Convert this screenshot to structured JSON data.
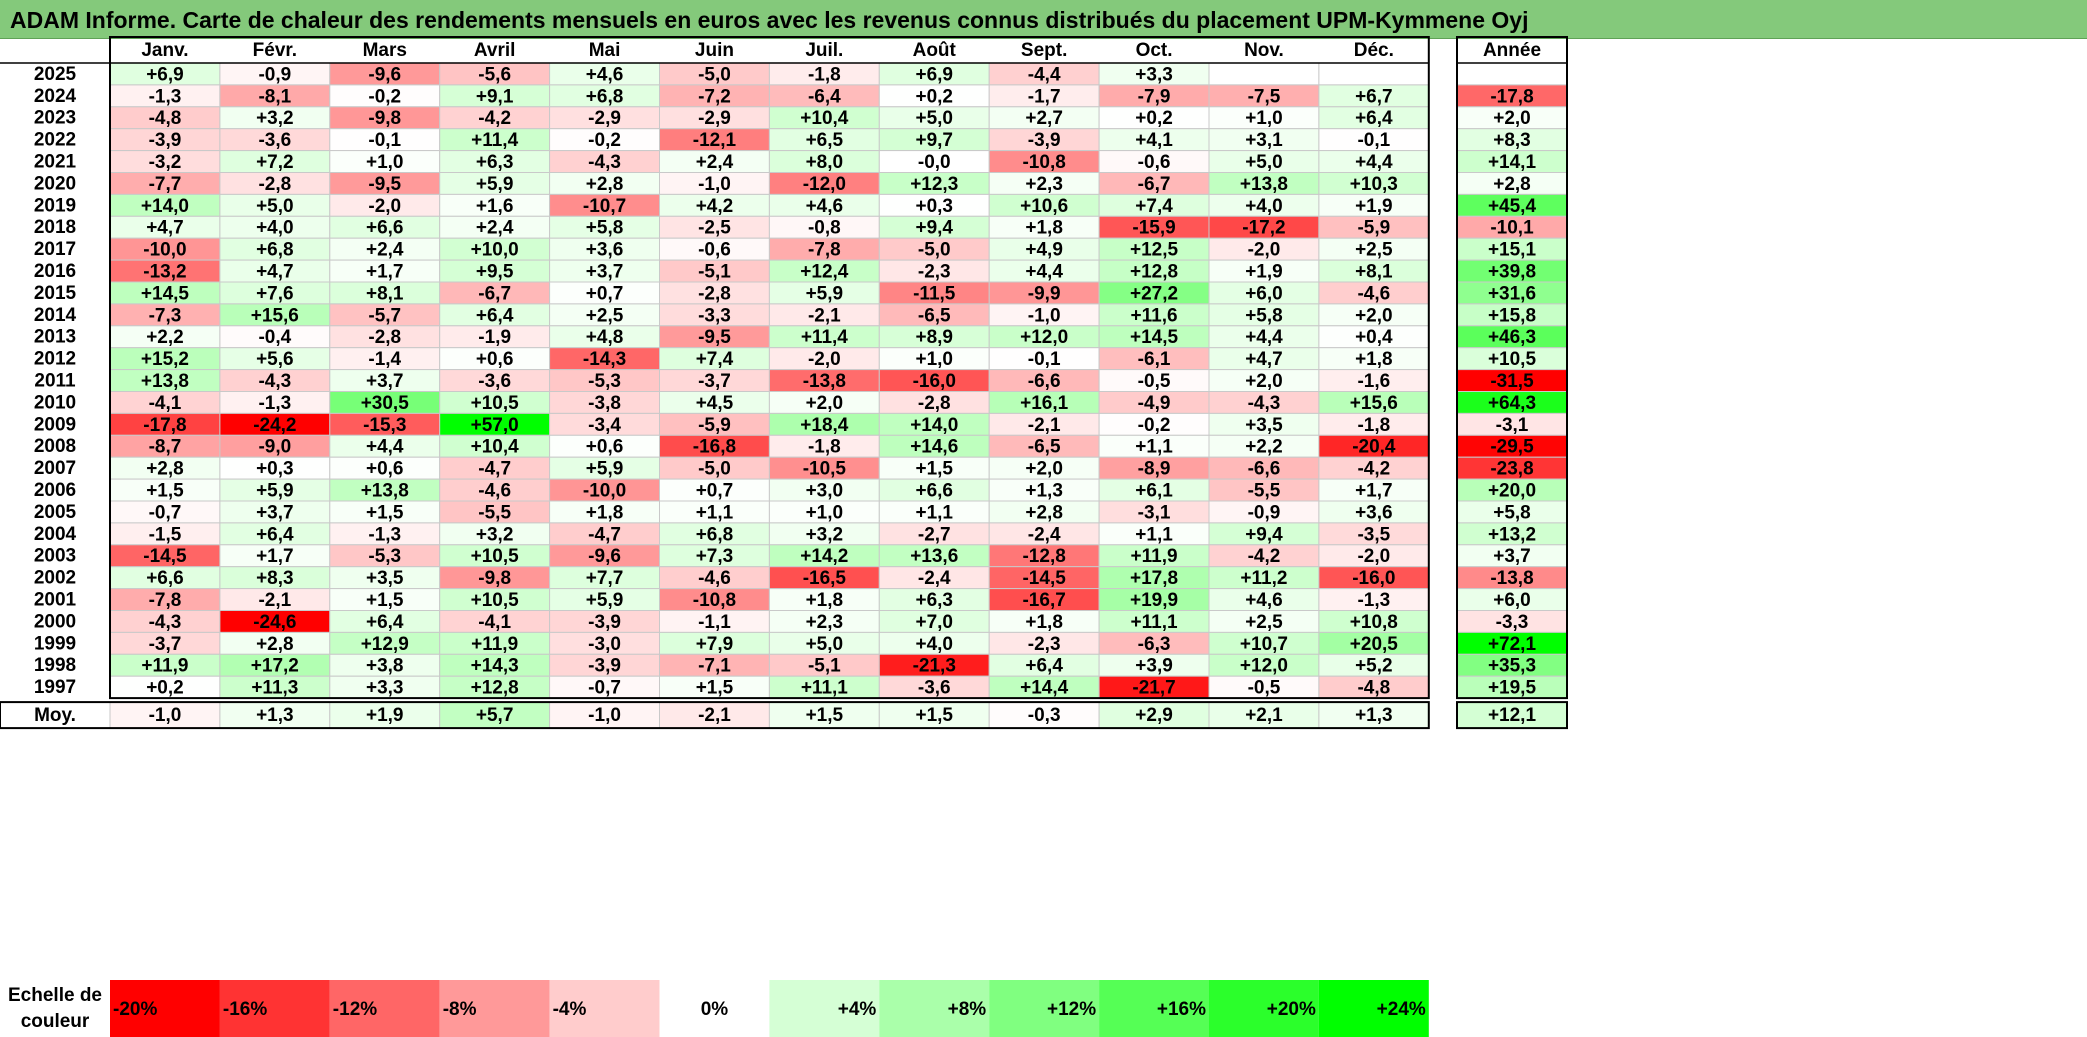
{
  "title": "ADAM Informe. Carte de chaleur des rendements mensuels en euros avec les revenus connus distribués du placement UPM-Kymmene Oyj",
  "chart_data": {
    "type": "heatmap",
    "columns": [
      "Janv.",
      "Févr.",
      "Mars",
      "Avril",
      "Mai",
      "Juin",
      "Juil.",
      "Août",
      "Sept.",
      "Oct.",
      "Nov.",
      "Déc."
    ],
    "annual_header": "Année",
    "rows": [
      {
        "year": "2025",
        "months": [
          "+6,9",
          "-0,9",
          "-9,6",
          "-5,6",
          "+4,6",
          "-5,0",
          "-1,8",
          "+6,9",
          "-4,4",
          "+3,3",
          "",
          ""
        ],
        "annual": ""
      },
      {
        "year": "2024",
        "months": [
          "-1,3",
          "-8,1",
          "-0,2",
          "+9,1",
          "+6,8",
          "-7,2",
          "-6,4",
          "+0,2",
          "-1,7",
          "-7,9",
          "-7,5",
          "+6,7"
        ],
        "annual": "-17,8"
      },
      {
        "year": "2023",
        "months": [
          "-4,8",
          "+3,2",
          "-9,8",
          "-4,2",
          "-2,9",
          "-2,9",
          "+10,4",
          "+5,0",
          "+2,7",
          "+0,2",
          "+1,0",
          "+6,4"
        ],
        "annual": "+2,0"
      },
      {
        "year": "2022",
        "months": [
          "-3,9",
          "-3,6",
          "-0,1",
          "+11,4",
          "-0,2",
          "-12,1",
          "+6,5",
          "+9,7",
          "-3,9",
          "+4,1",
          "+3,1",
          "-0,1"
        ],
        "annual": "+8,3"
      },
      {
        "year": "2021",
        "months": [
          "-3,2",
          "+7,2",
          "+1,0",
          "+6,3",
          "-4,3",
          "+2,4",
          "+8,0",
          "-0,0",
          "-10,8",
          "-0,6",
          "+5,0",
          "+4,4"
        ],
        "annual": "+14,1"
      },
      {
        "year": "2020",
        "months": [
          "-7,7",
          "-2,8",
          "-9,5",
          "+5,9",
          "+2,8",
          "-1,0",
          "-12,0",
          "+12,3",
          "+2,3",
          "-6,7",
          "+13,8",
          "+10,3"
        ],
        "annual": "+2,8"
      },
      {
        "year": "2019",
        "months": [
          "+14,0",
          "+5,0",
          "-2,0",
          "+1,6",
          "-10,7",
          "+4,2",
          "+4,6",
          "+0,3",
          "+10,6",
          "+7,4",
          "+4,0",
          "+1,9"
        ],
        "annual": "+45,4"
      },
      {
        "year": "2018",
        "months": [
          "+4,7",
          "+4,0",
          "+6,6",
          "+2,4",
          "+5,8",
          "-2,5",
          "-0,8",
          "+9,4",
          "+1,8",
          "-15,9",
          "-17,2",
          "-5,9"
        ],
        "annual": "-10,1"
      },
      {
        "year": "2017",
        "months": [
          "-10,0",
          "+6,8",
          "+2,4",
          "+10,0",
          "+3,6",
          "-0,6",
          "-7,8",
          "-5,0",
          "+4,9",
          "+12,5",
          "-2,0",
          "+2,5"
        ],
        "annual": "+15,1"
      },
      {
        "year": "2016",
        "months": [
          "-13,2",
          "+4,7",
          "+1,7",
          "+9,5",
          "+3,7",
          "-5,1",
          "+12,4",
          "-2,3",
          "+4,4",
          "+12,8",
          "+1,9",
          "+8,1"
        ],
        "annual": "+39,8"
      },
      {
        "year": "2015",
        "months": [
          "+14,5",
          "+7,6",
          "+8,1",
          "-6,7",
          "+0,7",
          "-2,8",
          "+5,9",
          "-11,5",
          "-9,9",
          "+27,2",
          "+6,0",
          "-4,6"
        ],
        "annual": "+31,6"
      },
      {
        "year": "2014",
        "months": [
          "-7,3",
          "+15,6",
          "-5,7",
          "+6,4",
          "+2,5",
          "-3,3",
          "-2,1",
          "-6,5",
          "-1,0",
          "+11,6",
          "+5,8",
          "+2,0"
        ],
        "annual": "+15,8"
      },
      {
        "year": "2013",
        "months": [
          "+2,2",
          "-0,4",
          "-2,8",
          "-1,9",
          "+4,8",
          "-9,5",
          "+11,4",
          "+8,9",
          "+12,0",
          "+14,5",
          "+4,4",
          "+0,4"
        ],
        "annual": "+46,3"
      },
      {
        "year": "2012",
        "months": [
          "+15,2",
          "+5,6",
          "-1,4",
          "+0,6",
          "-14,3",
          "+7,4",
          "-2,0",
          "+1,0",
          "-0,1",
          "-6,1",
          "+4,7",
          "+1,8"
        ],
        "annual": "+10,5"
      },
      {
        "year": "2011",
        "months": [
          "+13,8",
          "-4,3",
          "+3,7",
          "-3,6",
          "-5,3",
          "-3,7",
          "-13,8",
          "-16,0",
          "-6,6",
          "-0,5",
          "+2,0",
          "-1,6"
        ],
        "annual": "-31,5"
      },
      {
        "year": "2010",
        "months": [
          "-4,1",
          "-1,3",
          "+30,5",
          "+10,5",
          "-3,8",
          "+4,5",
          "+2,0",
          "-2,8",
          "+16,1",
          "-4,9",
          "-4,3",
          "+15,6"
        ],
        "annual": "+64,3"
      },
      {
        "year": "2009",
        "months": [
          "-17,8",
          "-24,2",
          "-15,3",
          "+57,0",
          "-3,4",
          "-5,9",
          "+18,4",
          "+14,0",
          "-2,1",
          "-0,2",
          "+3,5",
          "-1,8"
        ],
        "annual": "-3,1"
      },
      {
        "year": "2008",
        "months": [
          "-8,7",
          "-9,0",
          "+4,4",
          "+10,4",
          "+0,6",
          "-16,8",
          "-1,8",
          "+14,6",
          "-6,5",
          "+1,1",
          "+2,2",
          "-20,4"
        ],
        "annual": "-29,5"
      },
      {
        "year": "2007",
        "months": [
          "+2,8",
          "+0,3",
          "+0,6",
          "-4,7",
          "+5,9",
          "-5,0",
          "-10,5",
          "+1,5",
          "+2,0",
          "-8,9",
          "-6,6",
          "-4,2"
        ],
        "annual": "-23,8"
      },
      {
        "year": "2006",
        "months": [
          "+1,5",
          "+5,9",
          "+13,8",
          "-4,6",
          "-10,0",
          "+0,7",
          "+3,0",
          "+6,6",
          "+1,3",
          "+6,1",
          "-5,5",
          "+1,7"
        ],
        "annual": "+20,0"
      },
      {
        "year": "2005",
        "months": [
          "-0,7",
          "+3,7",
          "+1,5",
          "-5,5",
          "+1,8",
          "+1,1",
          "+1,0",
          "+1,1",
          "+2,8",
          "-3,1",
          "-0,9",
          "+3,6"
        ],
        "annual": "+5,8"
      },
      {
        "year": "2004",
        "months": [
          "-1,5",
          "+6,4",
          "-1,3",
          "+3,2",
          "-4,7",
          "+6,8",
          "+3,2",
          "-2,7",
          "-2,4",
          "+1,1",
          "+9,4",
          "-3,5"
        ],
        "annual": "+13,2"
      },
      {
        "year": "2003",
        "months": [
          "-14,5",
          "+1,7",
          "-5,3",
          "+10,5",
          "-9,6",
          "+7,3",
          "+14,2",
          "+13,6",
          "-12,8",
          "+11,9",
          "-4,2",
          "-2,0"
        ],
        "annual": "+3,7"
      },
      {
        "year": "2002",
        "months": [
          "+6,6",
          "+8,3",
          "+3,5",
          "-9,8",
          "+7,7",
          "-4,6",
          "-16,5",
          "-2,4",
          "-14,5",
          "+17,8",
          "+11,2",
          "-16,0"
        ],
        "annual": "-13,8"
      },
      {
        "year": "2001",
        "months": [
          "-7,8",
          "-2,1",
          "+1,5",
          "+10,5",
          "+5,9",
          "-10,8",
          "+1,8",
          "+6,3",
          "-16,7",
          "+19,9",
          "+4,6",
          "-1,3"
        ],
        "annual": "+6,0"
      },
      {
        "year": "2000",
        "months": [
          "-4,3",
          "-24,6",
          "+6,4",
          "-4,1",
          "-3,9",
          "-1,1",
          "+2,3",
          "+7,0",
          "+1,8",
          "+11,1",
          "+2,5",
          "+10,8"
        ],
        "annual": "-3,3"
      },
      {
        "year": "1999",
        "months": [
          "-3,7",
          "+2,8",
          "+12,9",
          "+11,9",
          "-3,0",
          "+7,9",
          "+5,0",
          "+4,0",
          "-2,3",
          "-6,3",
          "+10,7",
          "+20,5"
        ],
        "annual": "+72,1"
      },
      {
        "year": "1998",
        "months": [
          "+11,9",
          "+17,2",
          "+3,8",
          "+14,3",
          "-3,9",
          "-7,1",
          "-5,1",
          "-21,3",
          "+6,4",
          "+3,9",
          "+12,0",
          "+5,2"
        ],
        "annual": "+35,3"
      },
      {
        "year": "1997",
        "months": [
          "+0,2",
          "+11,3",
          "+3,3",
          "+12,8",
          "-0,7",
          "+1,5",
          "+11,1",
          "-3,6",
          "+14,4",
          "-21,7",
          "-0,5",
          "-4,8"
        ],
        "annual": "+19,5"
      }
    ],
    "average_label": "Moy.",
    "average": {
      "months": [
        "-1,0",
        "+1,3",
        "+1,9",
        "+5,7",
        "-1,0",
        "-2,1",
        "+1,5",
        "+1,5",
        "-0,3",
        "+2,9",
        "+2,1",
        "+1,3"
      ],
      "annual": "+12,1"
    },
    "scale_label": [
      "Echelle de",
      "couleur"
    ],
    "scale": [
      "-20%",
      "-16%",
      "-12%",
      "-8%",
      "-4%",
      "0%",
      "+4%",
      "+8%",
      "+12%",
      "+16%",
      "+20%",
      "+24%"
    ],
    "colors": {
      "negative": "#ff0000",
      "neutral": "#ffffff",
      "positive": "#00ff00",
      "title_bar": "#84c97b"
    }
  }
}
